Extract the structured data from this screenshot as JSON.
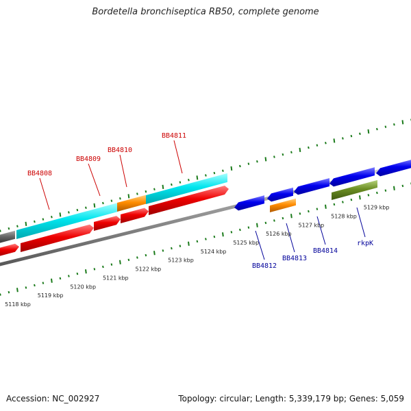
{
  "title": "Bordetella bronchiseptica RB50, complete genome",
  "footer": {
    "accession": "Accession: NC_002927",
    "summary": "Topology: circular; Length: 5,339,179 bp; Genes: 5,059"
  },
  "colors": {
    "forward_label": "#cc0000",
    "reverse_label": "#000099",
    "tick": "#1a7a1a",
    "cyan_gene": "#00e5ee",
    "red_gene": "#ee0000",
    "orange_gene": "#ff8c00",
    "blue_gene": "#0000ee",
    "green_gene": "#6b8e23",
    "dark_gene": "#666666"
  },
  "scale_labels": [
    "5118 kbp",
    "5119 kbp",
    "5120 kbp",
    "5121 kbp",
    "5122 kbp",
    "5123 kbp",
    "5124 kbp",
    "5125 kbp",
    "5126 kbp",
    "5127 kbp",
    "5128 kbp",
    "5129 kbp"
  ],
  "forward_gene_labels": [
    "BB4808",
    "BB4809",
    "BB4810",
    "BB4811"
  ],
  "reverse_gene_labels": [
    "BB4812",
    "BB4813",
    "BB4814",
    "rkpK"
  ]
}
